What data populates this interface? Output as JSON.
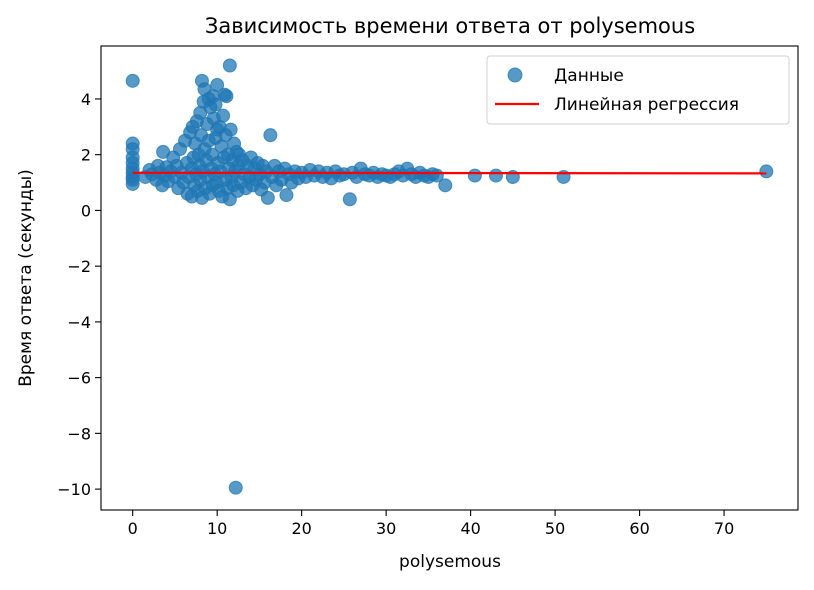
{
  "chart_data": {
    "type": "scatter",
    "title": "Зависимость времени ответа от polysemous",
    "xlabel": "polysemous",
    "ylabel": "Время ответа (секунды)",
    "xlim": [
      -3.75,
      78.75
    ],
    "ylim": [
      -10.75,
      5.9
    ],
    "x_ticks": [
      0,
      10,
      20,
      30,
      40,
      50,
      60,
      70
    ],
    "x_tick_labels": [
      "0",
      "10",
      "20",
      "30",
      "40",
      "50",
      "60",
      "70"
    ],
    "y_ticks": [
      -10,
      -8,
      -6,
      -4,
      -2,
      0,
      2,
      4
    ],
    "y_tick_labels": [
      "−10",
      "−8",
      "−6",
      "−4",
      "−2",
      "0",
      "2",
      "4"
    ],
    "grid": false,
    "legend_position": "top-right",
    "colors": {
      "points": "#1f77b4",
      "regression": "#ff0000"
    },
    "series": [
      {
        "name": "Данные",
        "kind": "scatter",
        "points": [
          [
            0,
            4.65
          ],
          [
            0,
            2.4
          ],
          [
            0,
            2.2
          ],
          [
            0,
            1.9
          ],
          [
            0,
            1.7
          ],
          [
            0,
            1.5
          ],
          [
            0,
            1.35
          ],
          [
            0,
            1.2
          ],
          [
            0,
            1.1
          ],
          [
            0,
            0.95
          ],
          [
            1.5,
            1.2
          ],
          [
            2,
            1.45
          ],
          [
            2.3,
            1.3
          ],
          [
            2.8,
            1.1
          ],
          [
            3.0,
            1.6
          ],
          [
            3.2,
            1.35
          ],
          [
            3.5,
            0.9
          ],
          [
            3.6,
            2.1
          ],
          [
            3.8,
            1.25
          ],
          [
            4.0,
            1.55
          ],
          [
            4.2,
            1.05
          ],
          [
            4.5,
            1.4
          ],
          [
            4.8,
            1.9
          ],
          [
            5.0,
            1.2
          ],
          [
            5.2,
            1.6
          ],
          [
            5.4,
            0.8
          ],
          [
            5.6,
            2.2
          ],
          [
            5.8,
            1.35
          ],
          [
            6.0,
            1.0
          ],
          [
            6.2,
            2.5
          ],
          [
            6.4,
            1.7
          ],
          [
            6.5,
            0.6
          ],
          [
            6.6,
            1.2
          ],
          [
            6.8,
            2.8
          ],
          [
            7.0,
            1.5
          ],
          [
            7.0,
            0.5
          ],
          [
            7.1,
            3.0
          ],
          [
            7.2,
            1.9
          ],
          [
            7.3,
            0.9
          ],
          [
            7.4,
            2.4
          ],
          [
            7.5,
            1.3
          ],
          [
            7.6,
            3.2
          ],
          [
            7.7,
            0.7
          ],
          [
            7.8,
            2.0
          ],
          [
            7.9,
            1.6
          ],
          [
            8.0,
            3.5
          ],
          [
            8.0,
            1.1
          ],
          [
            8.1,
            2.7
          ],
          [
            8.2,
            0.45
          ],
          [
            8.2,
            4.65
          ],
          [
            8.3,
            1.4
          ],
          [
            8.4,
            3.9
          ],
          [
            8.5,
            2.2
          ],
          [
            8.5,
            4.35
          ],
          [
            8.6,
            0.8
          ],
          [
            8.7,
            1.8
          ],
          [
            8.8,
            3.1
          ],
          [
            8.9,
            1.2
          ],
          [
            9.0,
            2.5
          ],
          [
            9.0,
            4.0
          ],
          [
            9.1,
            0.6
          ],
          [
            9.2,
            3.7
          ],
          [
            9.3,
            1.5
          ],
          [
            9.4,
            2.0
          ],
          [
            9.5,
            4.1
          ],
          [
            9.5,
            0.9
          ],
          [
            9.6,
            3.3
          ],
          [
            9.7,
            1.3
          ],
          [
            9.8,
            2.6
          ],
          [
            9.8,
            3.8
          ],
          [
            9.9,
            1.0
          ],
          [
            10.0,
            2.9
          ],
          [
            10.0,
            4.5
          ],
          [
            10.1,
            1.7
          ],
          [
            10.2,
            0.7
          ],
          [
            10.3,
            3.0
          ],
          [
            10.4,
            1.4
          ],
          [
            10.5,
            2.3
          ],
          [
            10.6,
            0.5
          ],
          [
            10.7,
            3.4
          ],
          [
            10.8,
            1.9
          ],
          [
            10.9,
            4.15
          ],
          [
            11.0,
            1.1
          ],
          [
            11.0,
            2.7
          ],
          [
            11.1,
            4.1
          ],
          [
            11.2,
            0.8
          ],
          [
            11.3,
            2.0
          ],
          [
            11.4,
            1.5
          ],
          [
            11.5,
            5.2
          ],
          [
            11.5,
            0.4
          ],
          [
            11.6,
            2.9
          ],
          [
            11.7,
            1.2
          ],
          [
            11.8,
            1.8
          ],
          [
            11.9,
            0.9
          ],
          [
            12.0,
            2.4
          ],
          [
            12.1,
            1.4
          ],
          [
            12.2,
            -9.95
          ],
          [
            12.3,
            2.1
          ],
          [
            12.4,
            0.7
          ],
          [
            12.5,
            1.6
          ],
          [
            12.6,
            2.0
          ],
          [
            12.8,
            1.0
          ],
          [
            13.0,
            1.8
          ],
          [
            13.2,
            1.3
          ],
          [
            13.4,
            0.8
          ],
          [
            13.6,
            1.6
          ],
          [
            13.8,
            1.2
          ],
          [
            14.0,
            1.9
          ],
          [
            14.2,
            0.9
          ],
          [
            14.4,
            1.5
          ],
          [
            14.6,
            1.1
          ],
          [
            14.8,
            1.7
          ],
          [
            15.0,
            1.3
          ],
          [
            15.2,
            0.75
          ],
          [
            15.4,
            1.6
          ],
          [
            15.6,
            1.0
          ],
          [
            15.8,
            1.4
          ],
          [
            16.0,
            0.45
          ],
          [
            16.3,
            2.7
          ],
          [
            16.5,
            1.2
          ],
          [
            16.8,
            1.6
          ],
          [
            17.0,
            0.9
          ],
          [
            17.3,
            1.4
          ],
          [
            17.6,
            1.1
          ],
          [
            18.0,
            1.5
          ],
          [
            18.2,
            0.55
          ],
          [
            18.5,
            1.3
          ],
          [
            18.8,
            1.0
          ],
          [
            19.2,
            1.4
          ],
          [
            19.6,
            1.15
          ],
          [
            20.0,
            1.35
          ],
          [
            20.5,
            1.2
          ],
          [
            21.0,
            1.45
          ],
          [
            21.5,
            1.25
          ],
          [
            22.0,
            1.4
          ],
          [
            22.5,
            1.2
          ],
          [
            23.0,
            1.35
          ],
          [
            23.5,
            1.15
          ],
          [
            24.0,
            1.4
          ],
          [
            24.5,
            1.25
          ],
          [
            25.0,
            1.3
          ],
          [
            25.7,
            0.4
          ],
          [
            26.0,
            1.35
          ],
          [
            26.5,
            1.2
          ],
          [
            27.0,
            1.5
          ],
          [
            27.5,
            1.3
          ],
          [
            28.0,
            1.25
          ],
          [
            28.5,
            1.35
          ],
          [
            29.0,
            1.2
          ],
          [
            29.5,
            1.3
          ],
          [
            30.0,
            1.25
          ],
          [
            30.5,
            1.2
          ],
          [
            31.0,
            1.3
          ],
          [
            31.5,
            1.4
          ],
          [
            32.0,
            1.25
          ],
          [
            32.5,
            1.5
          ],
          [
            33.0,
            1.3
          ],
          [
            33.5,
            1.2
          ],
          [
            34.0,
            1.35
          ],
          [
            34.5,
            1.25
          ],
          [
            35.0,
            1.2
          ],
          [
            35.5,
            1.3
          ],
          [
            36.0,
            1.25
          ],
          [
            37.0,
            0.9
          ],
          [
            40.5,
            1.25
          ],
          [
            43.0,
            1.25
          ],
          [
            45.0,
            1.2
          ],
          [
            51.0,
            1.2
          ],
          [
            75.0,
            1.4
          ]
        ]
      },
      {
        "name": "Линейная регрессия",
        "kind": "line",
        "x": [
          0,
          75
        ],
        "y": [
          1.35,
          1.33
        ]
      }
    ]
  }
}
